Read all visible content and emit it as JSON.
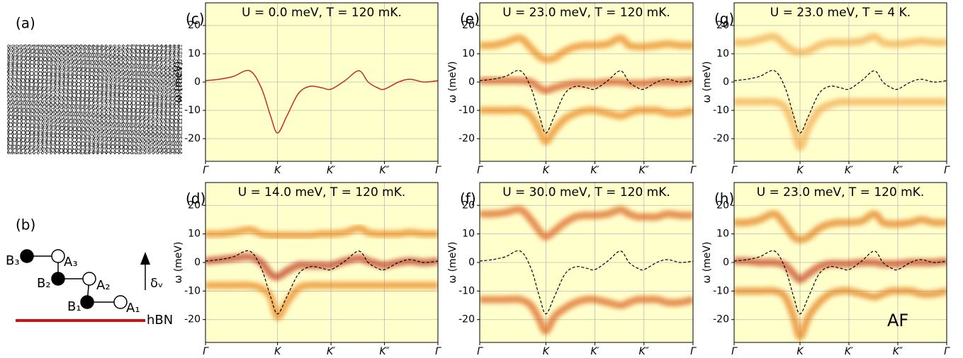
{
  "panel_a": {
    "label": "(a)"
  },
  "schematic": {
    "label": "(b)",
    "sites": [
      "B₃",
      "A₃",
      "B₂",
      "A₂",
      "B₁",
      "A₁"
    ],
    "arrow_label": "δᵥ",
    "substrate": "hBN"
  },
  "chart_data": [
    {
      "type": "spectral",
      "label": "(c)",
      "title": "U = 0.0 meV, T = 120 mK.",
      "ylabel": "ω (meV)",
      "x": [
        0,
        0.06,
        0.12,
        0.19,
        0.24,
        0.28,
        0.31,
        0.35,
        0.4,
        0.45,
        0.5,
        0.54,
        0.6,
        0.66,
        0.7,
        0.74,
        0.77,
        0.83,
        0.88,
        0.94,
        1.0
      ],
      "xlim": [
        0,
        1
      ],
      "xticks": [
        {
          "value": 0,
          "label": "Γ"
        },
        {
          "value": 0.31,
          "label": "K"
        },
        {
          "value": 0.54,
          "label": "K′"
        },
        {
          "value": 0.77,
          "label": "K″"
        },
        {
          "value": 1,
          "label": "Γ"
        }
      ],
      "ylim": [
        -28,
        28
      ],
      "yticks": [
        -20,
        -10,
        0,
        10,
        20
      ],
      "grid": true,
      "background": "#ffffcc",
      "bands": [],
      "lines": [
        {
          "style": "solid",
          "color": "#c0302a",
          "values": [
            0.5,
            1,
            2,
            4,
            -2,
            -12,
            -18,
            -12,
            -4,
            -1.5,
            -2,
            -2.5,
            0.5,
            4,
            0,
            -2,
            -2.5,
            0,
            1,
            0,
            0.5
          ]
        }
      ]
    },
    {
      "type": "spectral",
      "label": "(d)",
      "title": "U = 14.0 meV, T = 120 mK.",
      "ylabel": "ω (meV)",
      "x": [
        0,
        0.06,
        0.12,
        0.19,
        0.24,
        0.28,
        0.31,
        0.35,
        0.4,
        0.45,
        0.5,
        0.54,
        0.6,
        0.66,
        0.7,
        0.74,
        0.77,
        0.83,
        0.88,
        0.94,
        1.0
      ],
      "xlim": [
        0,
        1
      ],
      "xticks": [
        {
          "value": 0,
          "label": "Γ"
        },
        {
          "value": 0.31,
          "label": "K"
        },
        {
          "value": 0.54,
          "label": "K′"
        },
        {
          "value": 0.77,
          "label": "K″"
        },
        {
          "value": 1,
          "label": "Γ"
        }
      ],
      "ylim": [
        -28,
        28
      ],
      "yticks": [
        -20,
        -10,
        0,
        10,
        20
      ],
      "grid": true,
      "background": "#ffffcc",
      "bands": [
        {
          "color": "#e8780f",
          "values": [
            10,
            10,
            10.5,
            11.5,
            10,
            9.5,
            9.5,
            9.5,
            9.5,
            9.5,
            10,
            10,
            10.5,
            12,
            10.5,
            10,
            10,
            10,
            10.5,
            10,
            10
          ]
        },
        {
          "color": "#b8200c",
          "values": [
            0.5,
            1,
            1.5,
            2,
            0,
            -4,
            -5,
            -3,
            -1,
            -1,
            -1,
            -1,
            0.5,
            1.5,
            0.5,
            -0.5,
            -1,
            0,
            0.5,
            0,
            0.5
          ]
        },
        {
          "color": "#e8780f",
          "values": [
            -8,
            -8,
            -8,
            -8,
            -9,
            -12,
            -19,
            -14,
            -9,
            -8,
            -8,
            -8,
            -8,
            -8,
            -8,
            -8,
            -8,
            -8,
            -8,
            -8,
            -8
          ]
        }
      ],
      "lines": [
        {
          "style": "dashed",
          "color": "#000000",
          "values": [
            0.5,
            1,
            2,
            4,
            -2,
            -12,
            -18,
            -12,
            -4,
            -1.5,
            -2,
            -2.5,
            0.5,
            4,
            0,
            -2,
            -2.5,
            0,
            1,
            0,
            0.5
          ]
        }
      ]
    },
    {
      "type": "spectral",
      "label": "(e)",
      "title": "U = 23.0 meV, T = 120 mK.",
      "ylabel": "ω (meV)",
      "x": [
        0,
        0.06,
        0.12,
        0.19,
        0.24,
        0.28,
        0.31,
        0.35,
        0.4,
        0.45,
        0.5,
        0.54,
        0.6,
        0.66,
        0.7,
        0.74,
        0.77,
        0.83,
        0.88,
        0.94,
        1.0
      ],
      "xlim": [
        0,
        1
      ],
      "xticks": [
        {
          "value": 0,
          "label": "Γ"
        },
        {
          "value": 0.31,
          "label": "K"
        },
        {
          "value": 0.54,
          "label": "K′"
        },
        {
          "value": 0.77,
          "label": "K″"
        },
        {
          "value": 1,
          "label": "Γ"
        }
      ],
      "ylim": [
        -28,
        28
      ],
      "yticks": [
        -20,
        -10,
        0,
        10,
        20
      ],
      "grid": true,
      "background": "#ffffcc",
      "bands": [
        {
          "color": "#e8780f",
          "values": [
            13,
            13,
            14,
            15.5,
            12,
            9,
            8,
            8.5,
            11,
            12.5,
            13,
            13,
            13.5,
            15.5,
            13,
            12.5,
            12.5,
            13,
            13.5,
            13,
            13
          ]
        },
        {
          "color": "#d04010",
          "values": [
            0.5,
            0.5,
            0.5,
            0.5,
            0,
            -2,
            -3,
            -2,
            -1,
            -0.5,
            -0.5,
            -0.5,
            0,
            0,
            -0.5,
            -0.5,
            -0.5,
            0,
            0,
            0,
            0.5
          ]
        },
        {
          "color": "#e8780f",
          "values": [
            -10,
            -10,
            -10,
            -10,
            -12,
            -17,
            -21,
            -17,
            -13,
            -11,
            -10,
            -10,
            -11,
            -12,
            -11,
            -10,
            -10,
            -10,
            -11,
            -11,
            -10
          ]
        }
      ],
      "lines": [
        {
          "style": "dashed",
          "color": "#000000",
          "values": [
            0.5,
            1,
            2,
            4,
            -2,
            -12,
            -18,
            -12,
            -4,
            -1.5,
            -2,
            -2.5,
            0.5,
            4,
            0,
            -2,
            -2.5,
            0,
            1,
            0,
            0.5
          ]
        }
      ]
    },
    {
      "type": "spectral",
      "label": "(f)",
      "title": "U = 30.0 meV, T = 120 mK.",
      "ylabel": "ω (meV)",
      "x": [
        0,
        0.06,
        0.12,
        0.19,
        0.24,
        0.28,
        0.31,
        0.35,
        0.4,
        0.45,
        0.5,
        0.54,
        0.6,
        0.66,
        0.7,
        0.74,
        0.77,
        0.83,
        0.88,
        0.94,
        1.0
      ],
      "xlim": [
        0,
        1
      ],
      "xticks": [
        {
          "value": 0,
          "label": "Γ"
        },
        {
          "value": 0.31,
          "label": "K"
        },
        {
          "value": 0.54,
          "label": "K′"
        },
        {
          "value": 0.77,
          "label": "K″"
        },
        {
          "value": 1,
          "label": "Γ"
        }
      ],
      "ylim": [
        -28,
        28
      ],
      "yticks": [
        -20,
        -10,
        0,
        10,
        20
      ],
      "grid": true,
      "background": "#ffffcc",
      "bands": [
        {
          "color": "#d8500c",
          "values": [
            17,
            17,
            17.5,
            18.5,
            15,
            11,
            9,
            11,
            14,
            16,
            16.5,
            16.5,
            17,
            18.5,
            17,
            16,
            16,
            16,
            17,
            16.5,
            16.5
          ]
        },
        {
          "color": "#d8500c",
          "values": [
            -13,
            -13,
            -13,
            -13,
            -15,
            -20,
            -24,
            -19,
            -16,
            -14,
            -13,
            -13,
            -14,
            -15,
            -14,
            -13,
            -13,
            -13,
            -14,
            -14,
            -13
          ]
        }
      ],
      "lines": [
        {
          "style": "dashed",
          "color": "#000000",
          "values": [
            0.5,
            1,
            2,
            4,
            -2,
            -12,
            -18,
            -12,
            -4,
            -1.5,
            -2,
            -2.5,
            0.5,
            4,
            0,
            -2,
            -2.5,
            0,
            1,
            0,
            0.5
          ]
        }
      ]
    },
    {
      "type": "spectral",
      "label": "(g)",
      "title": "U = 23.0 meV, T =  4 K.",
      "ylabel": "ω (meV)",
      "x": [
        0,
        0.06,
        0.12,
        0.19,
        0.24,
        0.28,
        0.31,
        0.35,
        0.4,
        0.45,
        0.5,
        0.54,
        0.6,
        0.66,
        0.7,
        0.74,
        0.77,
        0.83,
        0.88,
        0.94,
        1.0
      ],
      "xlim": [
        0,
        1
      ],
      "xticks": [
        {
          "value": 0,
          "label": "Γ"
        },
        {
          "value": 0.31,
          "label": "K"
        },
        {
          "value": 0.54,
          "label": "K′"
        },
        {
          "value": 0.77,
          "label": "K″"
        },
        {
          "value": 1,
          "label": "Γ"
        }
      ],
      "ylim": [
        -28,
        28
      ],
      "yticks": [
        -20,
        -10,
        0,
        10,
        20
      ],
      "grid": true,
      "background": "#ffffcc",
      "bands": [
        {
          "color": "#f0a040",
          "values": [
            14,
            14,
            15,
            16,
            13,
            11,
            10.5,
            11,
            13,
            14,
            14,
            14,
            14.5,
            16,
            14,
            13.5,
            13.5,
            14,
            14.5,
            14,
            14
          ]
        },
        {
          "color": "#f0a040",
          "values": [
            -7,
            -7,
            -7,
            -7,
            -9,
            -16,
            -23,
            -16,
            -10,
            -8,
            -7,
            -7,
            -7,
            -7,
            -7,
            -7,
            -7,
            -7,
            -7,
            -7,
            -7
          ]
        }
      ],
      "lines": [
        {
          "style": "dashed",
          "color": "#000000",
          "values": [
            0.5,
            1,
            2,
            4,
            -2,
            -12,
            -18,
            -12,
            -4,
            -1.5,
            -2,
            -2.5,
            0.5,
            4,
            0,
            -2,
            -2.5,
            0,
            1,
            0,
            0.5
          ]
        }
      ]
    },
    {
      "type": "spectral",
      "label": "(h)",
      "title": "U = 23.0 meV, T = 120 mK.",
      "ylabel": "ω (meV)",
      "annotation": "AF",
      "x": [
        0,
        0.06,
        0.12,
        0.19,
        0.24,
        0.28,
        0.31,
        0.35,
        0.4,
        0.45,
        0.5,
        0.54,
        0.6,
        0.66,
        0.7,
        0.74,
        0.77,
        0.83,
        0.88,
        0.94,
        1.0
      ],
      "xlim": [
        0,
        1
      ],
      "xticks": [
        {
          "value": 0,
          "label": "Γ"
        },
        {
          "value": 0.31,
          "label": "K"
        },
        {
          "value": 0.54,
          "label": "K′"
        },
        {
          "value": 0.77,
          "label": "K″"
        },
        {
          "value": 1,
          "label": "Γ"
        }
      ],
      "ylim": [
        -28,
        28
      ],
      "yticks": [
        -20,
        -10,
        0,
        10,
        20
      ],
      "grid": true,
      "background": "#ffffcc",
      "bands": [
        {
          "color": "#e0700e",
          "values": [
            14,
            14,
            15,
            17,
            13,
            9,
            8,
            9,
            12,
            13.5,
            14,
            14,
            14.5,
            17,
            14,
            13.5,
            13.5,
            14,
            15,
            14,
            14
          ]
        },
        {
          "color": "#c02a0c",
          "values": [
            0.5,
            0.5,
            0,
            0,
            -1,
            -4,
            -6,
            -4,
            -1.5,
            -0.5,
            -0.5,
            -0.5,
            0,
            0,
            -0.5,
            -0.5,
            -0.5,
            0,
            0,
            0,
            0.5
          ]
        },
        {
          "color": "#e0700e",
          "values": [
            -10,
            -10,
            -10,
            -10,
            -12,
            -19,
            -26,
            -19,
            -14,
            -11,
            -10,
            -10,
            -11,
            -12,
            -11,
            -10,
            -10,
            -10,
            -11,
            -11,
            -10
          ]
        }
      ],
      "lines": [
        {
          "style": "dashed",
          "color": "#000000",
          "values": [
            0.5,
            1,
            2,
            4,
            -2,
            -12,
            -18,
            -12,
            -4,
            -1.5,
            -2,
            -2.5,
            0.5,
            4,
            0,
            -2,
            -2.5,
            0,
            1,
            0,
            0.5
          ]
        }
      ]
    }
  ]
}
